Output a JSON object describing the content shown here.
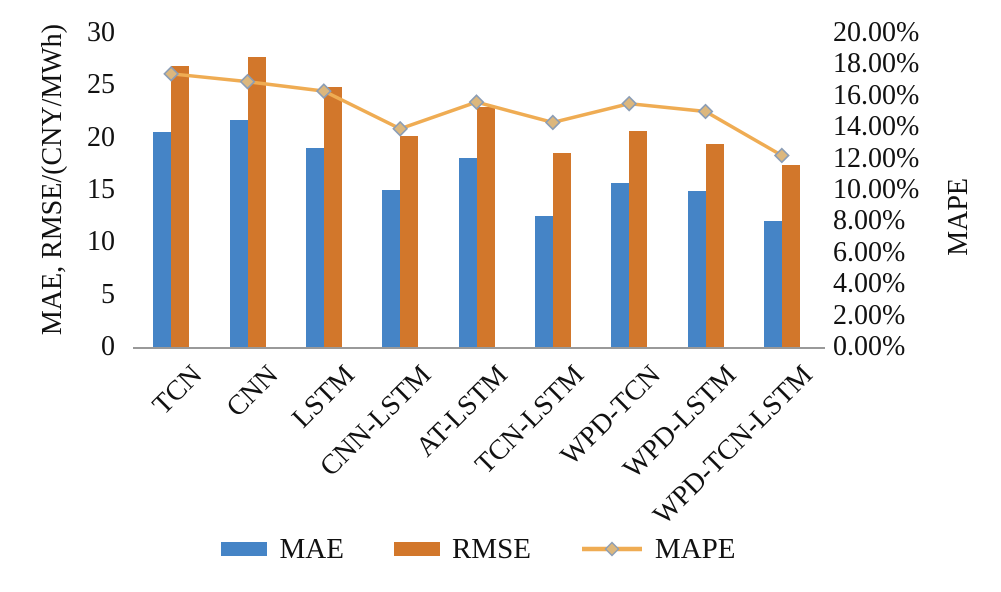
{
  "chart_data": {
    "type": "bar",
    "subtype": "grouped-bars-with-line",
    "categories": [
      "TCN",
      "CNN",
      "LSTM",
      "CNN-LSTM",
      "AT-LSTM",
      "TCN-LSTM",
      "WPD-TCN",
      "WPD-LSTM",
      "WPD-TCN-LSTM"
    ],
    "series": [
      {
        "name": "MAE",
        "type": "bar",
        "axis": "left",
        "color": "#4584C6",
        "values": [
          20.5,
          21.7,
          19.0,
          15.0,
          18.1,
          12.5,
          15.7,
          14.9,
          12.0
        ]
      },
      {
        "name": "RMSE",
        "type": "bar",
        "axis": "left",
        "color": "#D2772B",
        "values": [
          26.8,
          27.7,
          24.8,
          20.2,
          22.9,
          18.5,
          20.6,
          19.4,
          17.4
        ]
      },
      {
        "name": "MAPE",
        "type": "line",
        "axis": "right",
        "color": "#EFAC53",
        "marker": "diamond",
        "marker_fill": "#DCB77D",
        "marker_stroke": "#8B9DB5",
        "values": [
          17.4,
          16.9,
          16.3,
          13.9,
          15.6,
          14.3,
          15.5,
          15.0,
          12.2
        ]
      }
    ],
    "left_axis": {
      "title": "MAE, RMSE/(CNY/MWh)",
      "min": 0,
      "max": 30,
      "step": 5,
      "ticks": [
        "0",
        "5",
        "10",
        "15",
        "20",
        "25",
        "30"
      ]
    },
    "right_axis": {
      "title": "MAPE",
      "min": 0,
      "max": 20,
      "step": 2,
      "ticks": [
        "0.00%",
        "2.00%",
        "4.00%",
        "6.00%",
        "8.00%",
        "10.00%",
        "12.00%",
        "14.00%",
        "16.00%",
        "18.00%",
        "20.00%"
      ]
    },
    "legend": [
      "MAE",
      "RMSE",
      "MAPE"
    ],
    "legend_position": "bottom",
    "grid": false,
    "colors": {
      "axis_line": "#999999",
      "text": "#111111",
      "background": "#ffffff"
    }
  }
}
